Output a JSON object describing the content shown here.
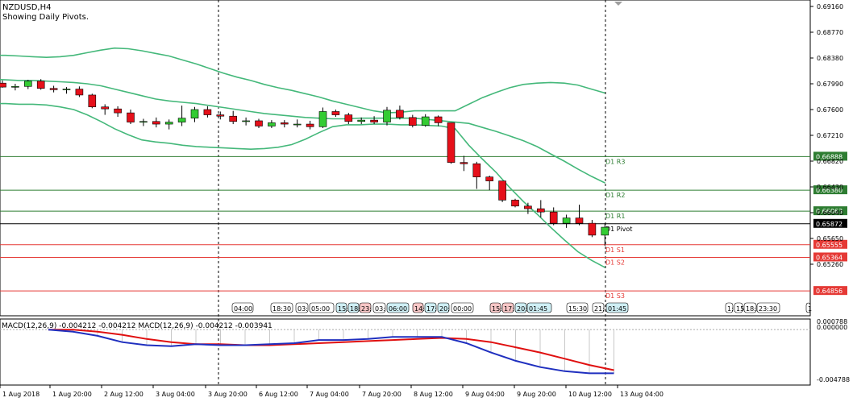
{
  "header": {
    "symbol": "NZDUSD,H4",
    "subtitle": "Showing Daily Pivots."
  },
  "price_axis": {
    "ticks": [
      "0.69160",
      "0.68770",
      "0.68380",
      "0.67990",
      "0.67600",
      "0.67210",
      "0.66820",
      "0.66430",
      "0.66040",
      "0.65650",
      "0.65260"
    ]
  },
  "pivots": [
    {
      "name": "D1 R3",
      "label": "D1 R3",
      "value": 0.66888,
      "value_label": "0.66888",
      "color": "#2e7d32"
    },
    {
      "name": "D1 R2",
      "label": "D1 R2",
      "value": 0.6638,
      "value_label": "0.66380",
      "color": "#2e7d32"
    },
    {
      "name": "D1 R1",
      "label": "D1 R1",
      "value": 0.66063,
      "value_label": "0.66063",
      "color": "#2e7d32"
    },
    {
      "name": "D1 Pivot",
      "label": "D1 Pivot",
      "value": 0.65872,
      "value_label": "0.65872",
      "color": "#000000"
    },
    {
      "name": "D1 S1",
      "label": "D1 S1",
      "value": 0.65555,
      "value_label": "0.65555",
      "color": "#e53935"
    },
    {
      "name": "D1 S2",
      "label": "D1 S2",
      "value": 0.65364,
      "value_label": "0.65364",
      "color": "#e53935"
    },
    {
      "name": "D1 S3",
      "label": "D1 S3",
      "value": 0.64856,
      "value_label": "0.64856",
      "color": "#e53935"
    }
  ],
  "session_labels": [
    {
      "text": "04:00",
      "bg": "#ffffff"
    },
    {
      "text": "18:30",
      "bg": "#ffffff"
    },
    {
      "text": "03:",
      "bg": "#ffffff"
    },
    {
      "text": "05:00",
      "bg": "#ffffff"
    },
    {
      "text": "15:",
      "bg": "#cfeff5"
    },
    {
      "text": "18:",
      "bg": "#cfeff5"
    },
    {
      "text": "23:",
      "bg": "#f8c7c7"
    },
    {
      "text": "03:",
      "bg": "#ffffff"
    },
    {
      "text": "06:00",
      "bg": "#cfeff5"
    },
    {
      "text": "14:",
      "bg": "#f8c7c7"
    },
    {
      "text": "17:",
      "bg": "#cfeff5"
    },
    {
      "text": "20:",
      "bg": "#cfeff5"
    },
    {
      "text": "00:00",
      "bg": "#ffffff"
    },
    {
      "text": "15:",
      "bg": "#f8c7c7"
    },
    {
      "text": "17:",
      "bg": "#f8c7c7"
    },
    {
      "text": "20:",
      "bg": "#cfeff5"
    },
    {
      "text": "01:45",
      "bg": "#cfeff5"
    },
    {
      "text": "15:30",
      "bg": "#ffffff"
    },
    {
      "text": "21:",
      "bg": "#ffffff"
    },
    {
      "text": "01:45",
      "bg": "#cfeff5"
    },
    {
      "text": "1:",
      "bg": "#ffffff"
    },
    {
      "text": "15:",
      "bg": "#ffffff"
    },
    {
      "text": "18:3",
      "bg": "#ffffff"
    },
    {
      "text": "23:30",
      "bg": "#ffffff"
    },
    {
      "text": "1",
      "bg": "#ffffff"
    }
  ],
  "macd": {
    "label": "MACD(12,26,9) -0.004212 -0.004212 MACD(12,26,9) -0.004212 -0.003941",
    "axis_top": "0.000788",
    "axis_zero": "0.000000",
    "axis_bottom": "-0.004788"
  },
  "time_axis": {
    "labels": [
      "1 Aug 2018",
      "1 Aug 20:00",
      "2 Aug 12:00",
      "3 Aug 04:00",
      "3 Aug 20:00",
      "6 Aug 12:00",
      "7 Aug 04:00",
      "7 Aug 20:00",
      "8 Aug 12:00",
      "9 Aug 04:00",
      "9 Aug 20:00",
      "10 Aug 12:00",
      "13 Aug 04:00"
    ]
  },
  "colors": {
    "bull": "#33cc33",
    "bear": "#e6101a",
    "bands": "#44b87a",
    "macd_main": "#1f2fbf",
    "macd_signal": "#e01010"
  },
  "chart_data": {
    "type": "candlestick",
    "title": "NZDUSD,H4",
    "subtitle": "Showing Daily Pivots.",
    "candles": [
      {
        "o": 0.68,
        "h": 0.6804,
        "l": 0.6793,
        "c": 0.6794
      },
      {
        "o": 0.6794,
        "h": 0.6799,
        "l": 0.6789,
        "c": 0.6795
      },
      {
        "o": 0.6795,
        "h": 0.6805,
        "l": 0.6791,
        "c": 0.6803
      },
      {
        "o": 0.6803,
        "h": 0.6806,
        "l": 0.679,
        "c": 0.6792
      },
      {
        "o": 0.6792,
        "h": 0.6796,
        "l": 0.6786,
        "c": 0.679
      },
      {
        "o": 0.679,
        "h": 0.6794,
        "l": 0.6784,
        "c": 0.6791
      },
      {
        "o": 0.6791,
        "h": 0.6795,
        "l": 0.6779,
        "c": 0.6782
      },
      {
        "o": 0.6782,
        "h": 0.6784,
        "l": 0.6762,
        "c": 0.6764
      },
      {
        "o": 0.6764,
        "h": 0.6768,
        "l": 0.6752,
        "c": 0.6761
      },
      {
        "o": 0.6761,
        "h": 0.6765,
        "l": 0.6749,
        "c": 0.6755
      },
      {
        "o": 0.6755,
        "h": 0.676,
        "l": 0.6738,
        "c": 0.6741
      },
      {
        "o": 0.6741,
        "h": 0.6746,
        "l": 0.6735,
        "c": 0.6742
      },
      {
        "o": 0.6742,
        "h": 0.6748,
        "l": 0.6733,
        "c": 0.6738
      },
      {
        "o": 0.6738,
        "h": 0.6745,
        "l": 0.673,
        "c": 0.6741
      },
      {
        "o": 0.6741,
        "h": 0.6766,
        "l": 0.6735,
        "c": 0.6747
      },
      {
        "o": 0.6747,
        "h": 0.6764,
        "l": 0.6741,
        "c": 0.676
      },
      {
        "o": 0.676,
        "h": 0.6765,
        "l": 0.6748,
        "c": 0.6752
      },
      {
        "o": 0.6752,
        "h": 0.6757,
        "l": 0.6745,
        "c": 0.675
      },
      {
        "o": 0.675,
        "h": 0.6758,
        "l": 0.6738,
        "c": 0.6742
      },
      {
        "o": 0.6742,
        "h": 0.6748,
        "l": 0.6736,
        "c": 0.6743
      },
      {
        "o": 0.6743,
        "h": 0.6746,
        "l": 0.6732,
        "c": 0.6735
      },
      {
        "o": 0.6735,
        "h": 0.6744,
        "l": 0.6732,
        "c": 0.674
      },
      {
        "o": 0.674,
        "h": 0.6744,
        "l": 0.6733,
        "c": 0.6738
      },
      {
        "o": 0.6738,
        "h": 0.6745,
        "l": 0.6733,
        "c": 0.6738
      },
      {
        "o": 0.6738,
        "h": 0.6743,
        "l": 0.673,
        "c": 0.6734
      },
      {
        "o": 0.6734,
        "h": 0.6763,
        "l": 0.6732,
        "c": 0.6757
      },
      {
        "o": 0.6757,
        "h": 0.676,
        "l": 0.6749,
        "c": 0.6752
      },
      {
        "o": 0.6752,
        "h": 0.6755,
        "l": 0.6738,
        "c": 0.6742
      },
      {
        "o": 0.6742,
        "h": 0.6748,
        "l": 0.6738,
        "c": 0.6744
      },
      {
        "o": 0.6744,
        "h": 0.675,
        "l": 0.6738,
        "c": 0.6741
      },
      {
        "o": 0.6741,
        "h": 0.6764,
        "l": 0.6736,
        "c": 0.6759
      },
      {
        "o": 0.6759,
        "h": 0.6766,
        "l": 0.6745,
        "c": 0.6748
      },
      {
        "o": 0.6748,
        "h": 0.6752,
        "l": 0.6733,
        "c": 0.6736
      },
      {
        "o": 0.6736,
        "h": 0.6753,
        "l": 0.6734,
        "c": 0.6749
      },
      {
        "o": 0.6749,
        "h": 0.6751,
        "l": 0.6735,
        "c": 0.674
      },
      {
        "o": 0.674,
        "h": 0.6738,
        "l": 0.6678,
        "c": 0.668
      },
      {
        "o": 0.668,
        "h": 0.669,
        "l": 0.6667,
        "c": 0.6678
      },
      {
        "o": 0.6678,
        "h": 0.6681,
        "l": 0.664,
        "c": 0.6658
      },
      {
        "o": 0.6658,
        "h": 0.666,
        "l": 0.6638,
        "c": 0.6652
      },
      {
        "o": 0.6652,
        "h": 0.6648,
        "l": 0.662,
        "c": 0.6623
      },
      {
        "o": 0.6623,
        "h": 0.6625,
        "l": 0.6612,
        "c": 0.6614
      },
      {
        "o": 0.6614,
        "h": 0.6619,
        "l": 0.6602,
        "c": 0.661
      },
      {
        "o": 0.661,
        "h": 0.6623,
        "l": 0.6597,
        "c": 0.6605
      },
      {
        "o": 0.6605,
        "h": 0.6612,
        "l": 0.6585,
        "c": 0.6588
      },
      {
        "o": 0.6588,
        "h": 0.6601,
        "l": 0.6581,
        "c": 0.6596
      },
      {
        "o": 0.6596,
        "h": 0.6616,
        "l": 0.6585,
        "c": 0.6588
      },
      {
        "o": 0.6588,
        "h": 0.6593,
        "l": 0.6567,
        "c": 0.657
      },
      {
        "o": 0.657,
        "h": 0.6588,
        "l": 0.6554,
        "c": 0.6582
      }
    ],
    "bollinger_upper": [
      0.6842,
      0.6842,
      0.6841,
      0.684,
      0.6839,
      0.684,
      0.6842,
      0.6846,
      0.685,
      0.6853,
      0.6852,
      0.6849,
      0.6845,
      0.6841,
      0.6835,
      0.6829,
      0.6822,
      0.6815,
      0.6809,
      0.6804,
      0.6798,
      0.6793,
      0.6789,
      0.6784,
      0.6779,
      0.6773,
      0.6768,
      0.6763,
      0.6758,
      0.6755,
      0.6756,
      0.6758,
      0.6758,
      0.6758,
      0.6758,
      0.6768,
      0.6778,
      0.6786,
      0.6793,
      0.6798,
      0.68,
      0.6801,
      0.68,
      0.6797,
      0.6791,
      0.6785
    ],
    "bollinger_middle": [
      0.6806,
      0.6805,
      0.6804,
      0.6804,
      0.6803,
      0.6802,
      0.6801,
      0.6799,
      0.6796,
      0.6791,
      0.6786,
      0.6781,
      0.6776,
      0.6773,
      0.6771,
      0.6769,
      0.6766,
      0.6763,
      0.676,
      0.6757,
      0.6754,
      0.6752,
      0.675,
      0.6748,
      0.6747,
      0.6746,
      0.6746,
      0.6747,
      0.6747,
      0.6747,
      0.6747,
      0.6747,
      0.6745,
      0.6743,
      0.6741,
      0.6739,
      0.6733,
      0.6727,
      0.672,
      0.6713,
      0.6704,
      0.6693,
      0.6682,
      0.667,
      0.6659,
      0.6649
    ],
    "bollinger_lower": [
      0.6769,
      0.6769,
      0.6768,
      0.6768,
      0.6767,
      0.6764,
      0.676,
      0.6752,
      0.6742,
      0.6731,
      0.6722,
      0.6714,
      0.6711,
      0.6709,
      0.6706,
      0.6704,
      0.6703,
      0.6702,
      0.6701,
      0.67,
      0.6701,
      0.6703,
      0.6707,
      0.6715,
      0.6725,
      0.6734,
      0.6737,
      0.6737,
      0.6738,
      0.6738,
      0.6737,
      0.6737,
      0.6736,
      0.6735,
      0.6731,
      0.6706,
      0.6685,
      0.6665,
      0.6642,
      0.6621,
      0.6602,
      0.6582,
      0.6563,
      0.6545,
      0.6532,
      0.6521
    ],
    "macd_main": [
      0.0,
      -0.0002,
      -0.0006,
      -0.0012,
      -0.0015,
      -0.0016,
      -0.0014,
      -0.0015,
      -0.0015,
      -0.0014,
      -0.0013,
      -0.001,
      -0.001,
      -0.0009,
      -0.0007,
      -0.0007,
      -0.0007,
      -0.0013,
      -0.0022,
      -0.003,
      -0.0036,
      -0.004,
      -0.0042,
      -0.0042
    ],
    "macd_signal": [
      0.0,
      0.0,
      -0.0002,
      -0.0005,
      -0.0009,
      -0.0012,
      -0.0014,
      -0.0014,
      -0.0015,
      -0.0015,
      -0.0014,
      -0.0013,
      -0.0012,
      -0.0011,
      -0.001,
      -0.0009,
      -0.0008,
      -0.0009,
      -0.0012,
      -0.0017,
      -0.0022,
      -0.0028,
      -0.0034,
      -0.0039
    ],
    "ylim": [
      0.65,
      0.692
    ],
    "macd_ylim": [
      -0.004788,
      0.000788
    ]
  }
}
